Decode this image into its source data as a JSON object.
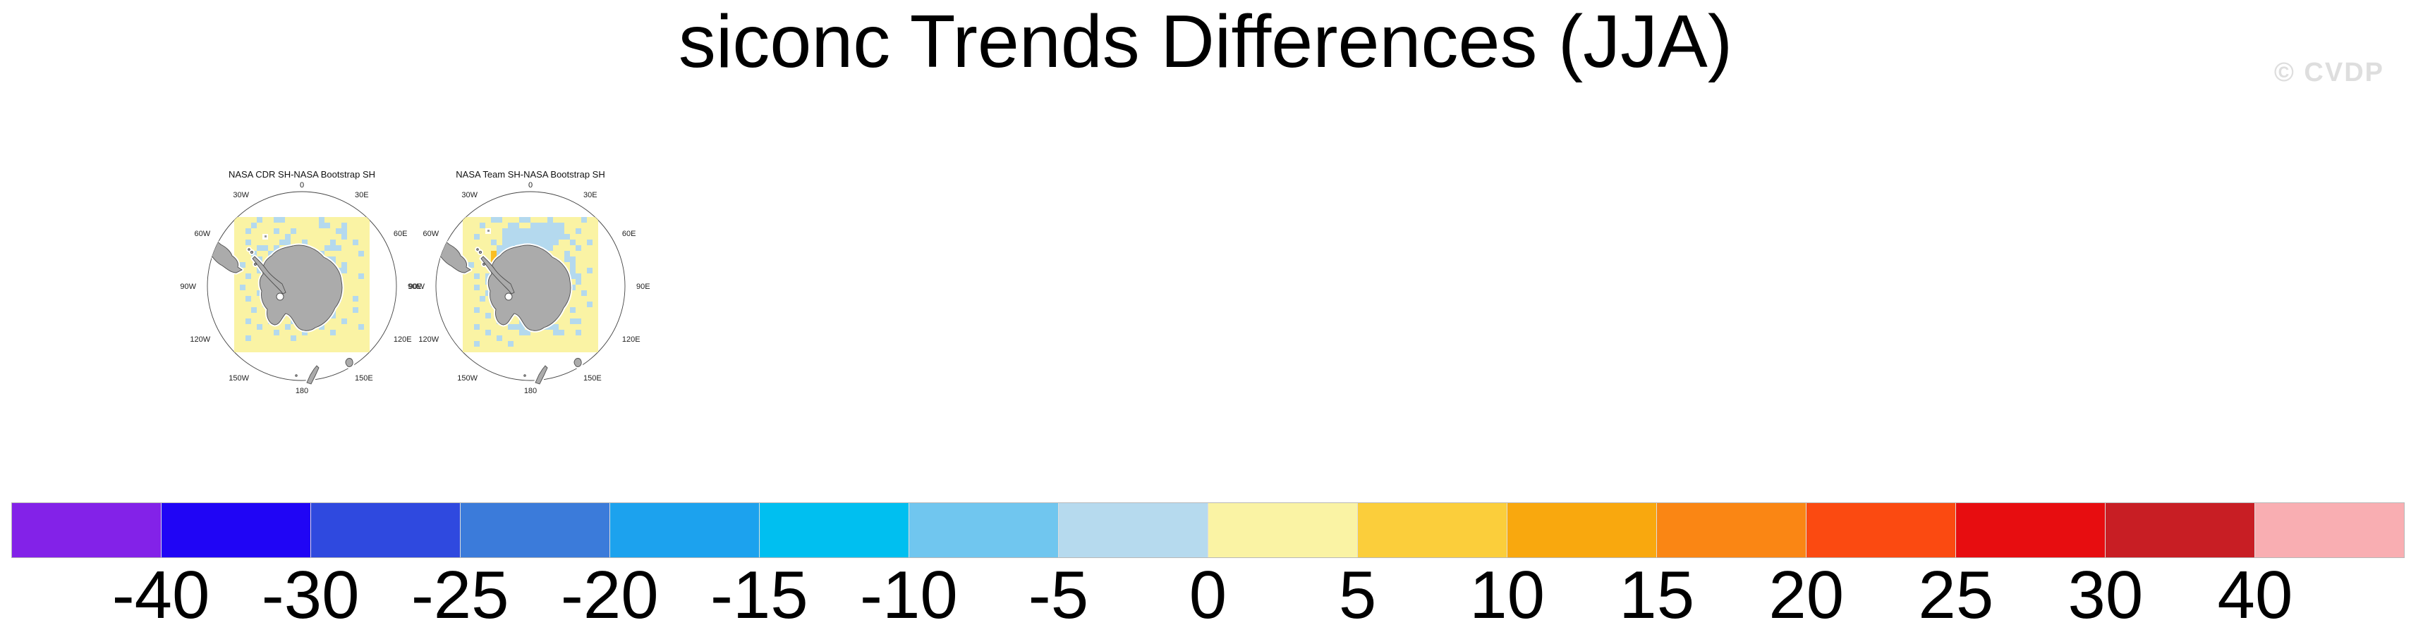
{
  "title": "siconc Trends Differences (JJA)",
  "watermark": "© CVDP",
  "chart_data": {
    "type": "heatmap",
    "figure_title": "siconc Trends Differences (JJA)",
    "variable": "siconc",
    "season": "JJA",
    "panels": [
      {
        "title": "NASA CDR SH-NASA Bootstrap SH",
        "projection": "south-polar-stereographic",
        "lon_labels": [
          {
            "a": 0,
            "t": "0"
          },
          {
            "a": 30,
            "t": "30E"
          },
          {
            "a": 60,
            "t": "60E"
          },
          {
            "a": 90,
            "t": "90E"
          },
          {
            "a": 120,
            "t": "120E"
          },
          {
            "a": 150,
            "t": "150E"
          },
          {
            "a": 180,
            "t": "180"
          },
          {
            "a": 210,
            "t": "150W"
          },
          {
            "a": 240,
            "t": "120W"
          },
          {
            "a": 270,
            "t": "90W"
          },
          {
            "a": 300,
            "t": "60W"
          },
          {
            "a": 330,
            "t": "30W"
          }
        ],
        "grid": [
          "YYYYBYYBBYYYYYYBYYYYYYYY",
          "YYYBYYYYYYYYYYYBBYYBYYYY",
          "YYBYYYYBYYBYYYYYYYBBYYYY",
          "YYYYYWYYYBYYYYYYYYYBYYYY",
          "YYBYYYYYBBYYBYYYYBYYYBYY",
          "YYYYBBYBYYYBYYYYBBBYYYYY",
          "YYYBYYBBYYBYYYYBYYYYYYBY",
          "YYYYBYYYYYYYYYYYBBYYYYYY",
          "YBYYYWBYYYYYYYYYYBYBYYYY",
          "YYYYBYYYYYYYYYYYYYBBYYYY",
          "YYBYYYYYYYYYYYYYYYBYYYBY",
          "YYYYYBYYYYYYYYYYYYBYYYYY",
          "YBYYYYBYYYYYYYYYYBYYYYYY",
          "YYYYBYWYYYYYYYYYYBBYYYYY",
          "YYBYYYBYYYYYYYYYYYBYYBYY",
          "YYYYYBYYYYYYYYYYYBYYYYYY",
          "YYYBYYYBYYYYYYYYBBYYYBYY",
          "YYYYYYYYBYYWWYYBYBYYYYYY",
          "YYBYYYBYYYBBYYBBYYYBYYYY",
          "YYYYBYYYYBYYYYYBYYYYYYBY",
          "YYYYYYYBYYYYBYYYYBYYYYYY",
          "YYBYYYYYYYBYYYYYYYYYYYYY",
          "YYYYYYYYYYYYYYYYYYYYYYYY",
          "YYYYYYYYYYYYYYYYYYYYYYYY"
        ]
      },
      {
        "title": "NASA Team SH-NASA Bootstrap SH",
        "projection": "south-polar-stereographic",
        "lon_labels": [
          {
            "a": 0,
            "t": "0"
          },
          {
            "a": 30,
            "t": "30E"
          },
          {
            "a": 60,
            "t": "60E"
          },
          {
            "a": 90,
            "t": "90E"
          },
          {
            "a": 120,
            "t": "120E"
          },
          {
            "a": 150,
            "t": "150E"
          },
          {
            "a": 180,
            "t": "180"
          },
          {
            "a": 210,
            "t": "150W"
          },
          {
            "a": 240,
            "t": "120W"
          },
          {
            "a": 270,
            "t": "90W"
          },
          {
            "a": 300,
            "t": "60W"
          },
          {
            "a": 330,
            "t": "30W"
          }
        ],
        "grid": [
          "YYYYYBBYYYBBYYYBYYYYYBYY",
          "YYYBYYYYBBYYBBBBBBYYYYYY",
          "YYYYWYYBBBBBBBBBBBYYBYYY",
          "YYBYYYYBBBBBBBBBBBBYYYYY",
          "YYYYYBYBBBBBBBBBBYYBYYBY",
          "YYYYYYBBBSBBBBBBYYYYBYYY",
          "YYYYYOBBBBBBYYYYYYBYYYYY",
          "YYYYYOYBYBBYYYYYYYBBYYYY",
          "YBYYYOYYBYYYYYYYYYYBYYYY",
          "YYYYYWYYYYYYYYYYYYYBYYBY",
          "YYBYBYYYYYYYYYYYYYYBBYYY",
          "YYYYBBYYYYYYYYYYYYYYBYYY",
          "YYBYYYYYYYYYYYYYYYYBYYYY",
          "YYYYBYYYYYYYYYYYYBBYYBYY",
          "YYYBYYBYYYYYYYYYYBYYYYYY",
          "YYYYYBBYYYYYYYYYBBYYYYBY",
          "YYBYYYBBYYYYYYYBBYYBYYYY",
          "YYYYBYYYYYYYOWYBBYYYYYYY",
          "YYYYYYBBYYBBBBBBYYYBBYYY",
          "YYBYYYYYBBBYYYBBBYYYYYYY",
          "YYYYBYYYYYBBYYYYBBYYBYYY",
          "YYYYYYBYYYYYYYYYYYYYYYYY",
          "YYBYYYYYBYYYYYYYYYYYYYYY",
          "YYYYYYYYYYYYYYYYYYYYYYYY"
        ]
      }
    ],
    "cell_legend": {
      "Y": "#FAF3A4",
      "B": "#B4D9EE",
      "S": "#66C3EC",
      "O": "#FBBE23",
      "W": "#FFFFFF"
    },
    "land_color": "#ABABAB",
    "coast_color": "#4D4D4D",
    "colorbar": {
      "labels": [
        "-40",
        "-30",
        "-25",
        "-20",
        "-15",
        "-10",
        "-5",
        "0",
        "5",
        "10",
        "15",
        "20",
        "25",
        "30",
        "40"
      ],
      "colors": [
        "#8322E8",
        "#2005F5",
        "#2F49DF",
        "#3B7BDA",
        "#1CA2EE",
        "#00BFF0",
        "#70C6EF",
        "#B6DAEE",
        "#FAF3A4",
        "#FBCE3B",
        "#F9A80E",
        "#FA8614",
        "#FB4A11",
        "#E70D10",
        "#C81E24",
        "#F9AEB2"
      ]
    }
  }
}
